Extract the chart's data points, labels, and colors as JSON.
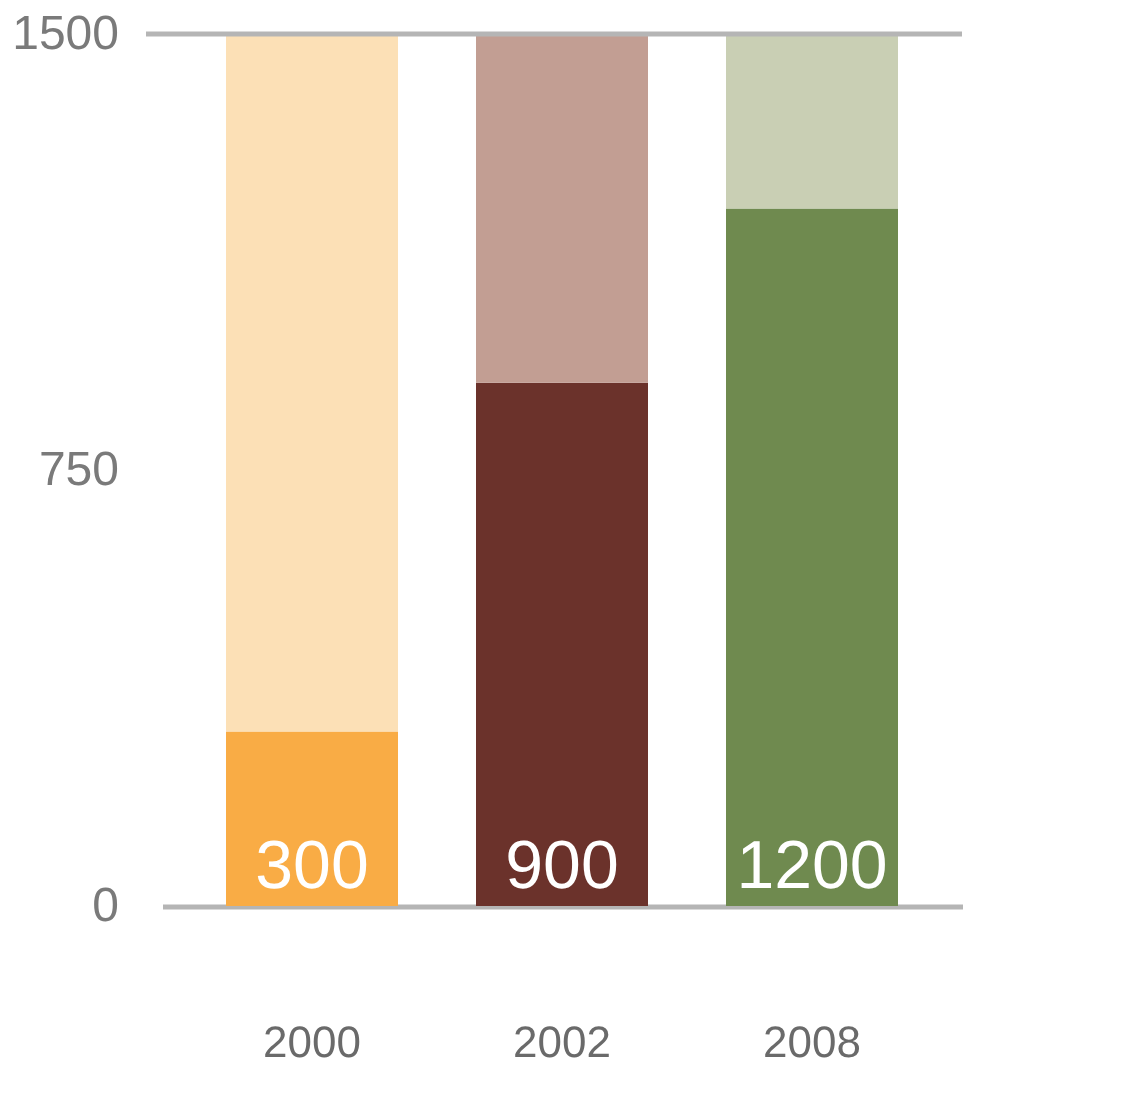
{
  "chart_data": {
    "type": "bar",
    "stacked": true,
    "categories": [
      "2000",
      "2002",
      "2008"
    ],
    "series": [
      {
        "colors": [
          "#f9ac45",
          "#6b322b",
          "#6f8a4f"
        ],
        "values": [
          300,
          900,
          1200
        ],
        "value_labels": [
          "300",
          "900",
          "1200"
        ]
      },
      {
        "colors": [
          "#fce0b6",
          "#c29e93",
          "#c9cfb4"
        ],
        "values": [
          1200,
          600,
          300
        ]
      }
    ],
    "ylim": [
      0,
      1500
    ],
    "yticks": [
      0,
      750,
      1500
    ],
    "grid": false,
    "ref_lines": [
      {
        "axis": "y",
        "value": 1500,
        "color": "#b5b5b5"
      }
    ]
  }
}
